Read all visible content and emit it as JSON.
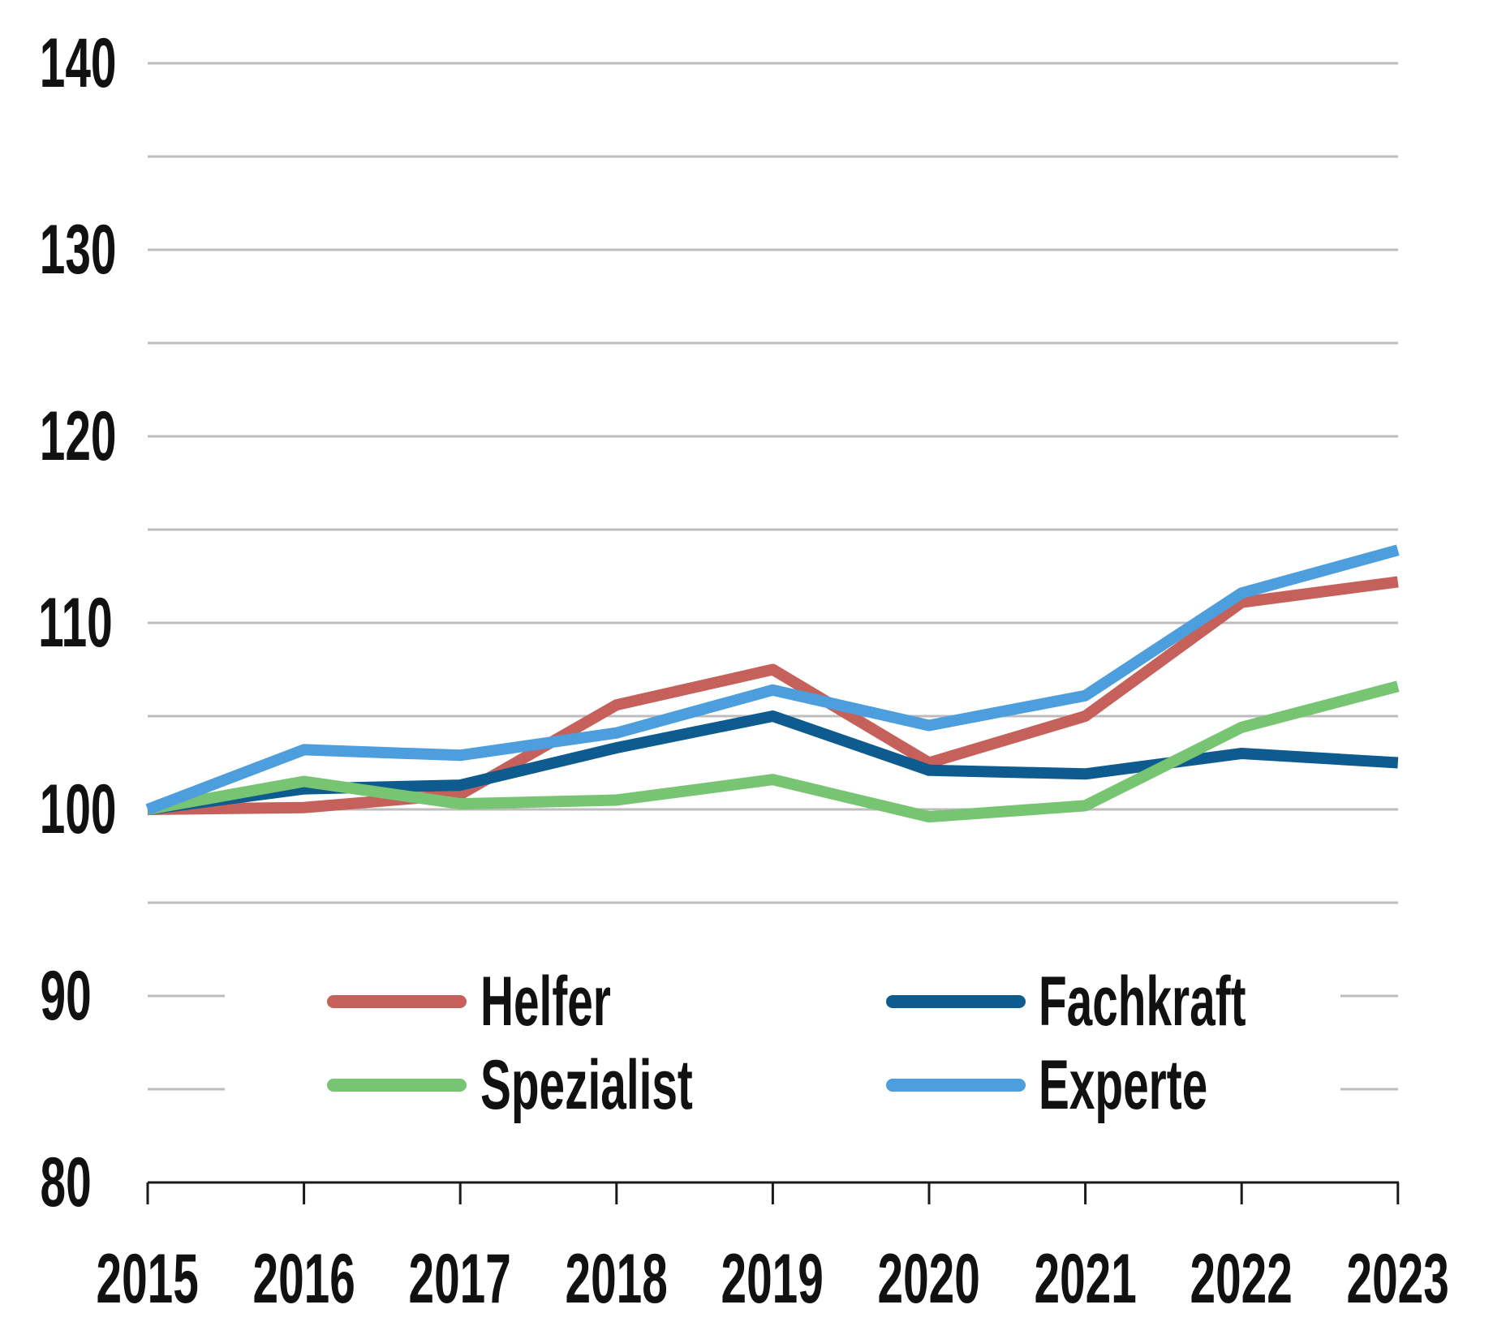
{
  "chart_data": {
    "type": "line",
    "title": "",
    "xlabel": "",
    "ylabel": "",
    "x": [
      2015,
      2016,
      2017,
      2018,
      2019,
      2020,
      2021,
      2022,
      2023
    ],
    "x_labels": [
      "2015",
      "2016",
      "2017",
      "2018",
      "2019",
      "2020",
      "2021",
      "2022",
      "2023"
    ],
    "series": [
      {
        "name": "Helfer",
        "color": "#C6605A",
        "values": [
          100,
          100.1,
          100.8,
          105.6,
          107.5,
          102.5,
          105.0,
          111.1,
          112.2
        ]
      },
      {
        "name": "Fachkraft",
        "color": "#0E5B90",
        "values": [
          100,
          101.1,
          101.3,
          103.3,
          105.0,
          102.1,
          101.9,
          103.0,
          102.5
        ]
      },
      {
        "name": "Spezialist",
        "color": "#77C472",
        "values": [
          100,
          101.5,
          100.3,
          100.5,
          101.6,
          99.6,
          100.2,
          104.4,
          106.6
        ]
      },
      {
        "name": "Experte",
        "color": "#4C9EDC",
        "values": [
          100,
          103.2,
          102.9,
          104.1,
          106.4,
          104.5,
          106.1,
          111.6,
          113.9
        ]
      }
    ],
    "ylim": [
      80,
      140
    ],
    "ytick_labels": [
      "140",
      "130",
      "120",
      "110",
      "100",
      "90",
      "80"
    ],
    "ytick_values": [
      140,
      130,
      120,
      110,
      100,
      90,
      80
    ],
    "grid": true,
    "gridline_step": 5,
    "baseline_value": 100,
    "legend_position": "inside-bottom"
  },
  "legend": {
    "items": [
      {
        "label": "Helfer",
        "color": "#C6605A"
      },
      {
        "label": "Fachkraft",
        "color": "#0E5B90"
      },
      {
        "label": "Spezialist",
        "color": "#77C472"
      },
      {
        "label": "Experte",
        "color": "#4C9EDC"
      }
    ]
  },
  "ui": {
    "background": "#FFFFFF",
    "gridline_color": "#BDBDBD",
    "axis_color": "#1A1A1A",
    "text_color": "#111111"
  }
}
